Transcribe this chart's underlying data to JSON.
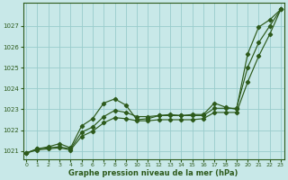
{
  "title": "Graphe pression niveau de la mer (hPa)",
  "bg_color": "#c8e8e8",
  "line_color": "#2d5a1b",
  "grid_color": "#99cccc",
  "ylim": [
    1020.6,
    1028.1
  ],
  "xlim": [
    -0.3,
    23.3
  ],
  "yticks": [
    1021,
    1022,
    1023,
    1024,
    1025,
    1026,
    1027
  ],
  "xticks": [
    0,
    1,
    2,
    3,
    4,
    5,
    6,
    7,
    8,
    9,
    10,
    11,
    12,
    13,
    14,
    15,
    16,
    17,
    18,
    19,
    20,
    21,
    22,
    23
  ],
  "s1": [
    1020.9,
    1021.1,
    1021.2,
    1021.35,
    1021.2,
    1022.2,
    1022.55,
    1023.3,
    1023.5,
    1023.2,
    1022.5,
    1022.55,
    1022.7,
    1022.75,
    1022.7,
    1022.75,
    1022.75,
    1023.3,
    1023.1,
    1023.0,
    1025.65,
    1026.95,
    1027.3,
    1027.8
  ],
  "s2": [
    1020.9,
    1021.1,
    1021.15,
    1021.2,
    1021.1,
    1021.85,
    1022.1,
    1022.6,
    1022.9,
    1022.8,
    1022.65,
    1022.65,
    1022.7,
    1022.7,
    1022.7,
    1022.7,
    1022.7,
    1023.0,
    1023.0,
    1023.0,
    1024.8,
    1026.1,
    1026.9,
    1027.8
  ],
  "s3": [
    1020.9,
    1021.05,
    1021.1,
    1021.15,
    1021.05,
    1021.65,
    1021.9,
    1022.3,
    1022.55,
    1022.5,
    1022.45,
    1022.45,
    1022.5,
    1022.5,
    1022.5,
    1022.5,
    1022.55,
    1022.8,
    1022.8,
    1022.8,
    1024.2,
    1025.5,
    1026.5,
    1027.75
  ]
}
